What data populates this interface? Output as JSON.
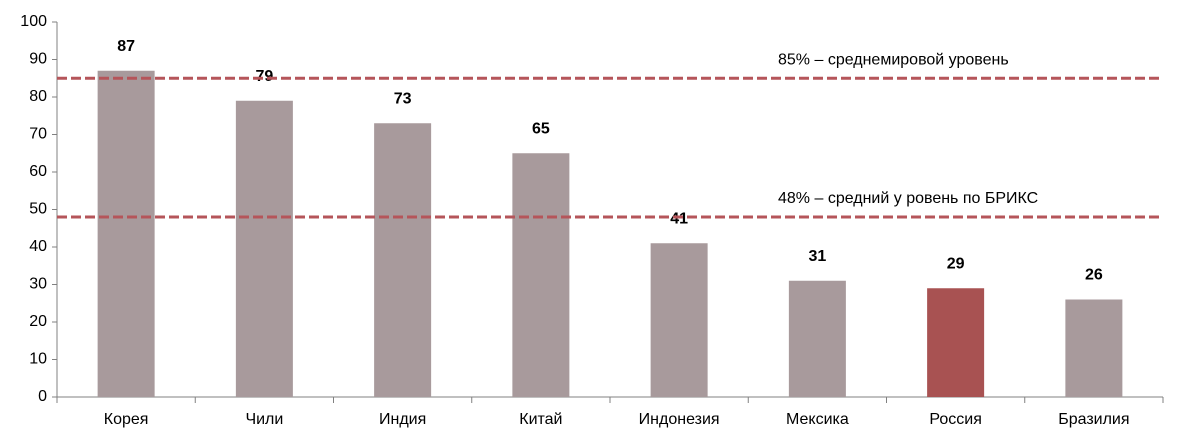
{
  "chart_data": {
    "type": "bar",
    "categories": [
      "Корея",
      "Чили",
      "Индия",
      "Китай",
      "Индонезия",
      "Мексика",
      "Россия",
      "Бразилия"
    ],
    "values": [
      87,
      79,
      73,
      65,
      41,
      31,
      29,
      26
    ],
    "colors": [
      "#a89a9c",
      "#a89a9c",
      "#a89a9c",
      "#a89a9c",
      "#a89a9c",
      "#a89a9c",
      "#a85252",
      "#a89a9c"
    ],
    "ylim": [
      0,
      100
    ],
    "yticks": [
      0,
      10,
      20,
      30,
      40,
      50,
      60,
      70,
      80,
      90,
      100
    ],
    "grid": false,
    "reference_lines": [
      {
        "value": 85,
        "label": "85% –  среднемировой уровень",
        "color": "#b5555a"
      },
      {
        "value": 48,
        "label": "48% –  средний у ровень по БРИКС",
        "color": "#b5555a"
      }
    ]
  }
}
